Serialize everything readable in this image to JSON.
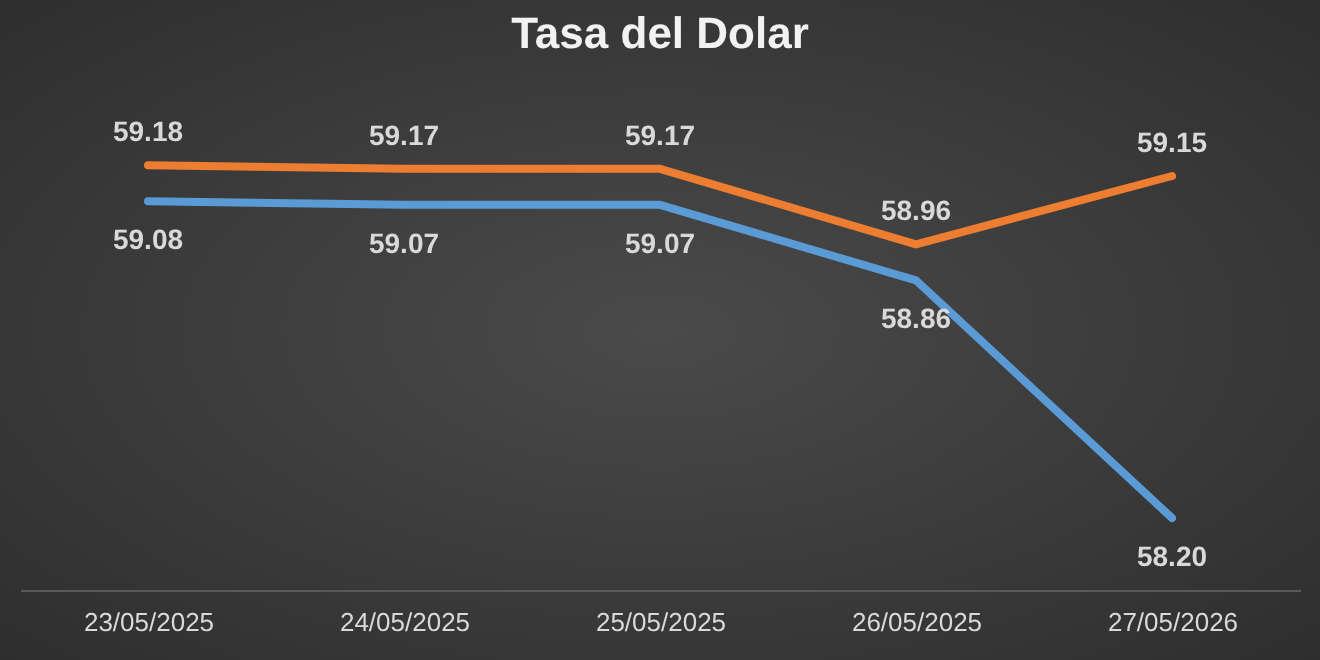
{
  "chart_data": {
    "type": "line",
    "title": "Tasa del Dolar",
    "categories": [
      "23/05/2025",
      "24/05/2025",
      "25/05/2025",
      "26/05/2025",
      "27/05/2026"
    ],
    "series": [
      {
        "color": "#ed7d31",
        "values": [
          59.18,
          59.17,
          59.17,
          58.96,
          59.15
        ],
        "value_labels": [
          "59.18",
          "59.17",
          "59.17",
          "58.96",
          "59.15"
        ]
      },
      {
        "color": "#5b9bd5",
        "values": [
          59.08,
          59.07,
          59.07,
          58.86,
          58.2
        ],
        "value_labels": [
          "59.08",
          "59.07",
          "59.07",
          "58.86",
          "58.20"
        ]
      }
    ],
    "marker": "none",
    "line_style": "solid"
  }
}
